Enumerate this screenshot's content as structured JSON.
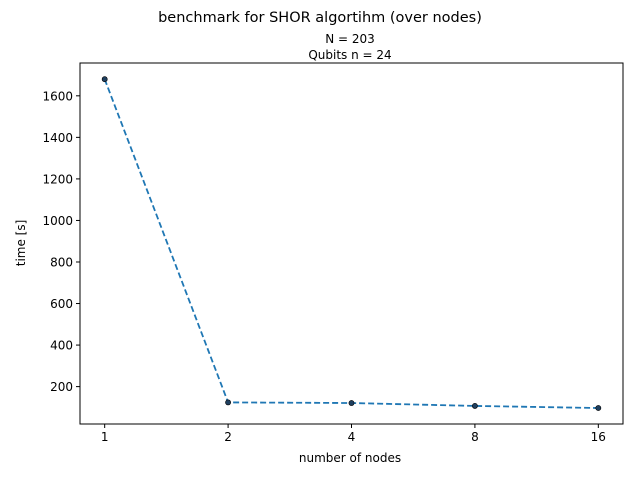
{
  "chart_data": {
    "type": "line",
    "suptitle": "benchmark for SHOR algortihm (over nodes)",
    "title_lines": [
      "N = 203",
      "Qubits n = 24"
    ],
    "xlabel": "number of nodes",
    "ylabel": "time [s]",
    "x_scale": "categorical",
    "categories": [
      "1",
      "2",
      "4",
      "8",
      "16"
    ],
    "series": [
      {
        "values": [
          1680,
          124,
          121,
          107,
          97
        ],
        "color": "#1f77b4",
        "line_style": "dashed",
        "marker": "dot"
      }
    ],
    "y_ticks": [
      200,
      400,
      600,
      800,
      1000,
      1200,
      1400,
      1600
    ],
    "ylim": [
      20,
      1758
    ],
    "grid": false,
    "legend": "none"
  }
}
